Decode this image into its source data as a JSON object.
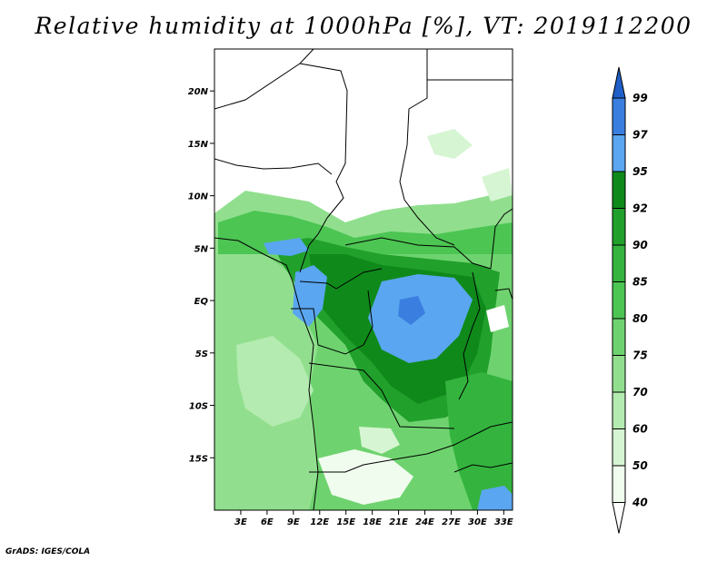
{
  "title": "Relative humidity at 1000hPa [%], VT: 2019112200",
  "footer": "GrADS: IGES/COLA",
  "map": {
    "lon_range": [
      0,
      34
    ],
    "lat_range": [
      -20,
      24
    ],
    "lat_ticks": [
      "20N",
      "15N",
      "10N",
      "5N",
      "EQ",
      "5S",
      "10S",
      "15S"
    ],
    "lon_ticks": [
      "3E",
      "6E",
      "9E",
      "12E",
      "15E",
      "18E",
      "21E",
      "24E",
      "27E",
      "30E",
      "33E"
    ]
  },
  "colorbar": {
    "levels": [
      "99",
      "97",
      "95",
      "92",
      "90",
      "85",
      "80",
      "75",
      "70",
      "60",
      "50",
      "40"
    ],
    "colors": [
      "#1f5fc8",
      "#3a7fe0",
      "#5aa6f0",
      "#0f8a1a",
      "#21a02c",
      "#34b43e",
      "#4cc553",
      "#6ed36f",
      "#91df8e",
      "#b4ebb0",
      "#d6f5d2",
      "#f0fcee",
      "#ffffff"
    ]
  },
  "legend_colors": {
    "dry": "#ffffff",
    "light_green": "#b4ebb0",
    "mid_green": "#6ed36f",
    "green": "#34b43e",
    "dark_green": "#0f8a1a",
    "blue": "#5aa6f0"
  }
}
